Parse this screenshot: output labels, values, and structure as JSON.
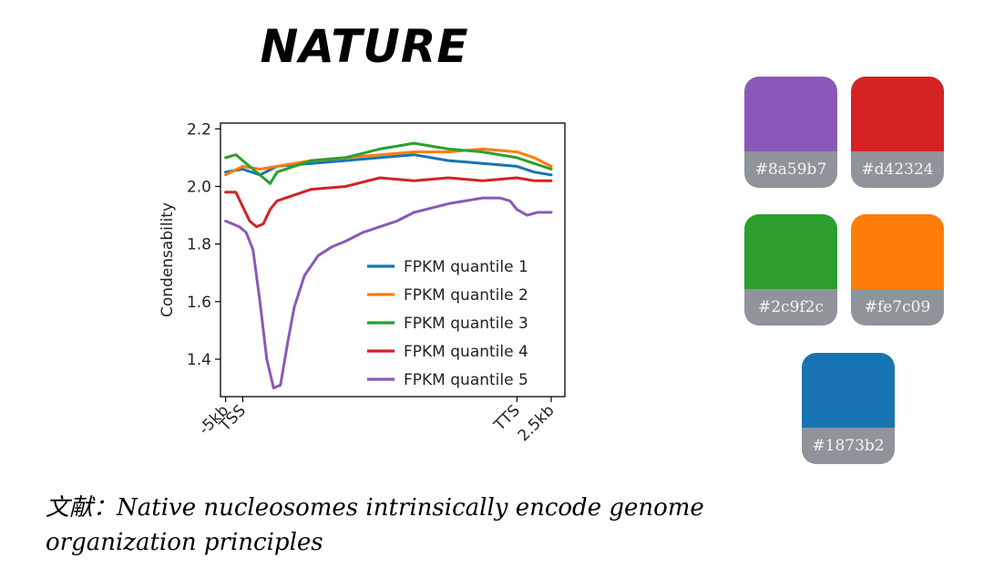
{
  "title": "NATURE",
  "caption": {
    "line1": "文献：Native nucleosomes intrinsically encode genome",
    "line2": "organization principles"
  },
  "palette": [
    {
      "name": "purple",
      "hex": "#8a59b7"
    },
    {
      "name": "red",
      "hex": "#d42324"
    },
    {
      "name": "green",
      "hex": "#2c9f2c"
    },
    {
      "name": "orange",
      "hex": "#fe7c09"
    },
    {
      "name": "blue",
      "hex": "#1873b2"
    }
  ],
  "chart_data": {
    "type": "line",
    "ylabel": "Condensability",
    "xlabel": "",
    "ylim": [
      1.27,
      2.22
    ],
    "yticks": [
      1.4,
      1.6,
      1.8,
      2.0,
      2.2
    ],
    "ytick_labels": [
      "1.4",
      "1.6",
      "1.8",
      "2.0",
      "2.2"
    ],
    "xlim": [
      -6.5,
      94
    ],
    "xticks": [
      {
        "pos": -5,
        "label": "-5kb"
      },
      {
        "pos": 0,
        "label": "TSS"
      },
      {
        "pos": 80,
        "label": "TTS"
      },
      {
        "pos": 90,
        "label": "2.5kb"
      }
    ],
    "legend_position": "lower-right",
    "grid": false,
    "series": [
      {
        "name": "FPKM quantile 1",
        "color": "#1873b2",
        "x": [
          -5,
          0,
          5,
          10,
          20,
          30,
          40,
          50,
          60,
          70,
          80,
          85,
          90
        ],
        "y": [
          2.05,
          2.06,
          2.04,
          2.07,
          2.08,
          2.09,
          2.1,
          2.11,
          2.09,
          2.08,
          2.07,
          2.05,
          2.04
        ]
      },
      {
        "name": "FPKM quantile 2",
        "color": "#fe7c09",
        "x": [
          -5,
          0,
          5,
          10,
          20,
          30,
          40,
          50,
          60,
          70,
          80,
          85,
          90
        ],
        "y": [
          2.04,
          2.07,
          2.06,
          2.07,
          2.09,
          2.1,
          2.11,
          2.12,
          2.12,
          2.13,
          2.12,
          2.1,
          2.07
        ]
      },
      {
        "name": "FPKM quantile 3",
        "color": "#2c9f2c",
        "x": [
          -5,
          -2,
          0,
          3,
          6,
          8,
          10,
          15,
          20,
          30,
          40,
          50,
          60,
          70,
          80,
          85,
          90
        ],
        "y": [
          2.1,
          2.11,
          2.09,
          2.06,
          2.03,
          2.01,
          2.05,
          2.07,
          2.09,
          2.1,
          2.13,
          2.15,
          2.13,
          2.12,
          2.1,
          2.08,
          2.06
        ]
      },
      {
        "name": "FPKM quantile 4",
        "color": "#d42324",
        "x": [
          -5,
          -2,
          0,
          2,
          4,
          6,
          8,
          10,
          15,
          20,
          30,
          40,
          50,
          60,
          70,
          80,
          85,
          90
        ],
        "y": [
          1.98,
          1.98,
          1.93,
          1.88,
          1.86,
          1.87,
          1.92,
          1.95,
          1.97,
          1.99,
          2.0,
          2.03,
          2.02,
          2.03,
          2.02,
          2.03,
          2.02,
          2.02
        ]
      },
      {
        "name": "FPKM quantile 5",
        "color": "#8a59b7",
        "x": [
          -5,
          -3,
          -1,
          1,
          3,
          5,
          7,
          9,
          11,
          13,
          15,
          18,
          22,
          26,
          30,
          35,
          40,
          45,
          50,
          60,
          70,
          75,
          78,
          80,
          83,
          86,
          90
        ],
        "y": [
          1.88,
          1.87,
          1.86,
          1.84,
          1.78,
          1.6,
          1.4,
          1.3,
          1.31,
          1.45,
          1.58,
          1.69,
          1.76,
          1.79,
          1.81,
          1.84,
          1.86,
          1.88,
          1.91,
          1.94,
          1.96,
          1.96,
          1.95,
          1.92,
          1.9,
          1.91,
          1.91
        ]
      }
    ]
  }
}
